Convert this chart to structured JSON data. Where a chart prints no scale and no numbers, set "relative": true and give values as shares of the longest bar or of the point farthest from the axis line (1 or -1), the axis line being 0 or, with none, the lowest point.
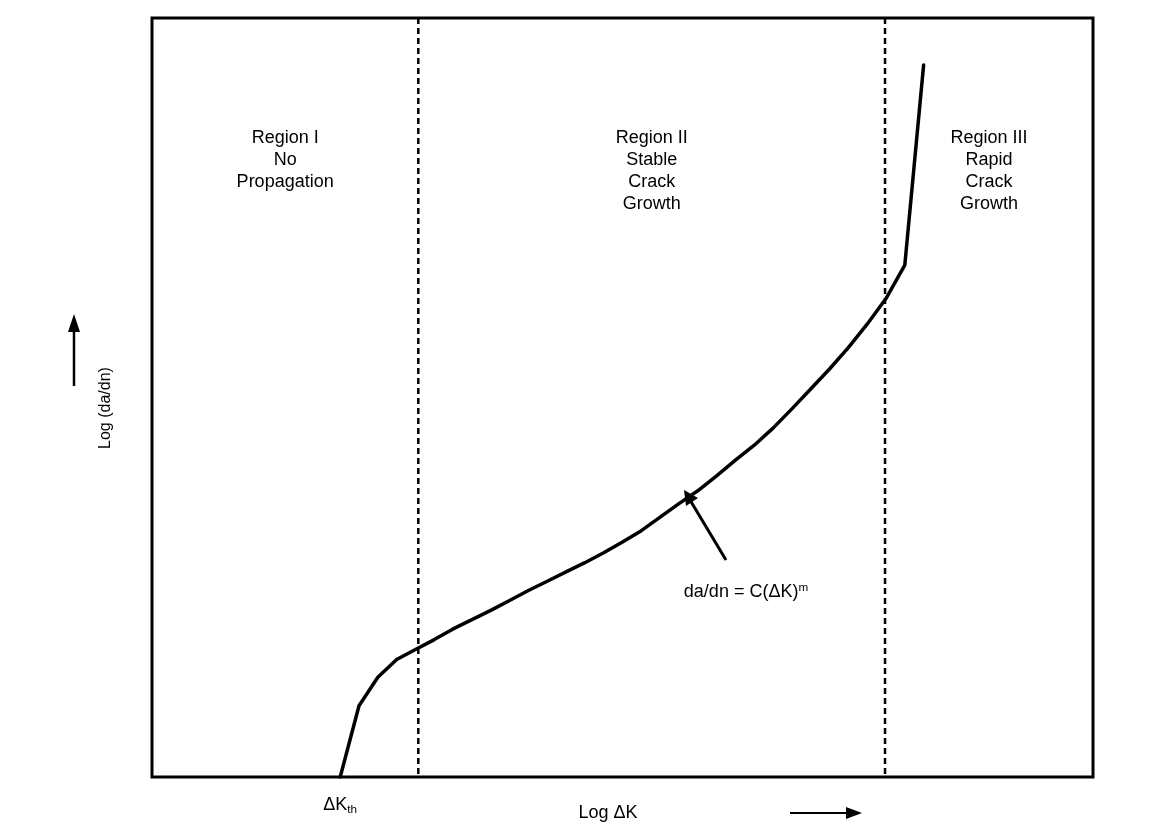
{
  "chart_data": {
    "type": "line",
    "relative": true,
    "xlabel": "Log ΔK",
    "ylabel": "Log (da/dn)",
    "grid": false,
    "marker": "none",
    "line_style": "solid",
    "categories": [
      null,
      null,
      null,
      null,
      null,
      null,
      null,
      null,
      null,
      null,
      null,
      null,
      null,
      null,
      null,
      null,
      null,
      null,
      null,
      null,
      null,
      null,
      null,
      null,
      null,
      null,
      null,
      null,
      null,
      null,
      null,
      null,
      null,
      null,
      null,
      null,
      null,
      null,
      null,
      null,
      null,
      null,
      null,
      null,
      null,
      null,
      null,
      null,
      null,
      null,
      null
    ],
    "series": [
      {
        "color": "#000000",
        "values": [
          null,
          null,
          null,
          null,
          null,
          null,
          null,
          null,
          null,
          null,
          0,
          0.1,
          0.14,
          0.165,
          0.179,
          0.193,
          0.208,
          0.221,
          0.234,
          0.248,
          0.262,
          0.275,
          0.288,
          0.301,
          0.315,
          0.33,
          0.346,
          0.365,
          0.384,
          0.402,
          0.423,
          0.445,
          0.466,
          0.49,
          0.517,
          0.545,
          0.573,
          0.603,
          0.636,
          0.672,
          0.719,
          1,
          null,
          null,
          null,
          null,
          null,
          null,
          null,
          null,
          null
        ]
      }
    ],
    "annotations": [
      "Region I\nNo\nPropagation",
      "Region II\nStable\nCrack\nGrowth",
      "Region III\nRapid\nCrack\nGrowth",
      "ΔK$_{th}$",
      "da/dn = C(ΔK)$^{m}$"
    ]
  }
}
